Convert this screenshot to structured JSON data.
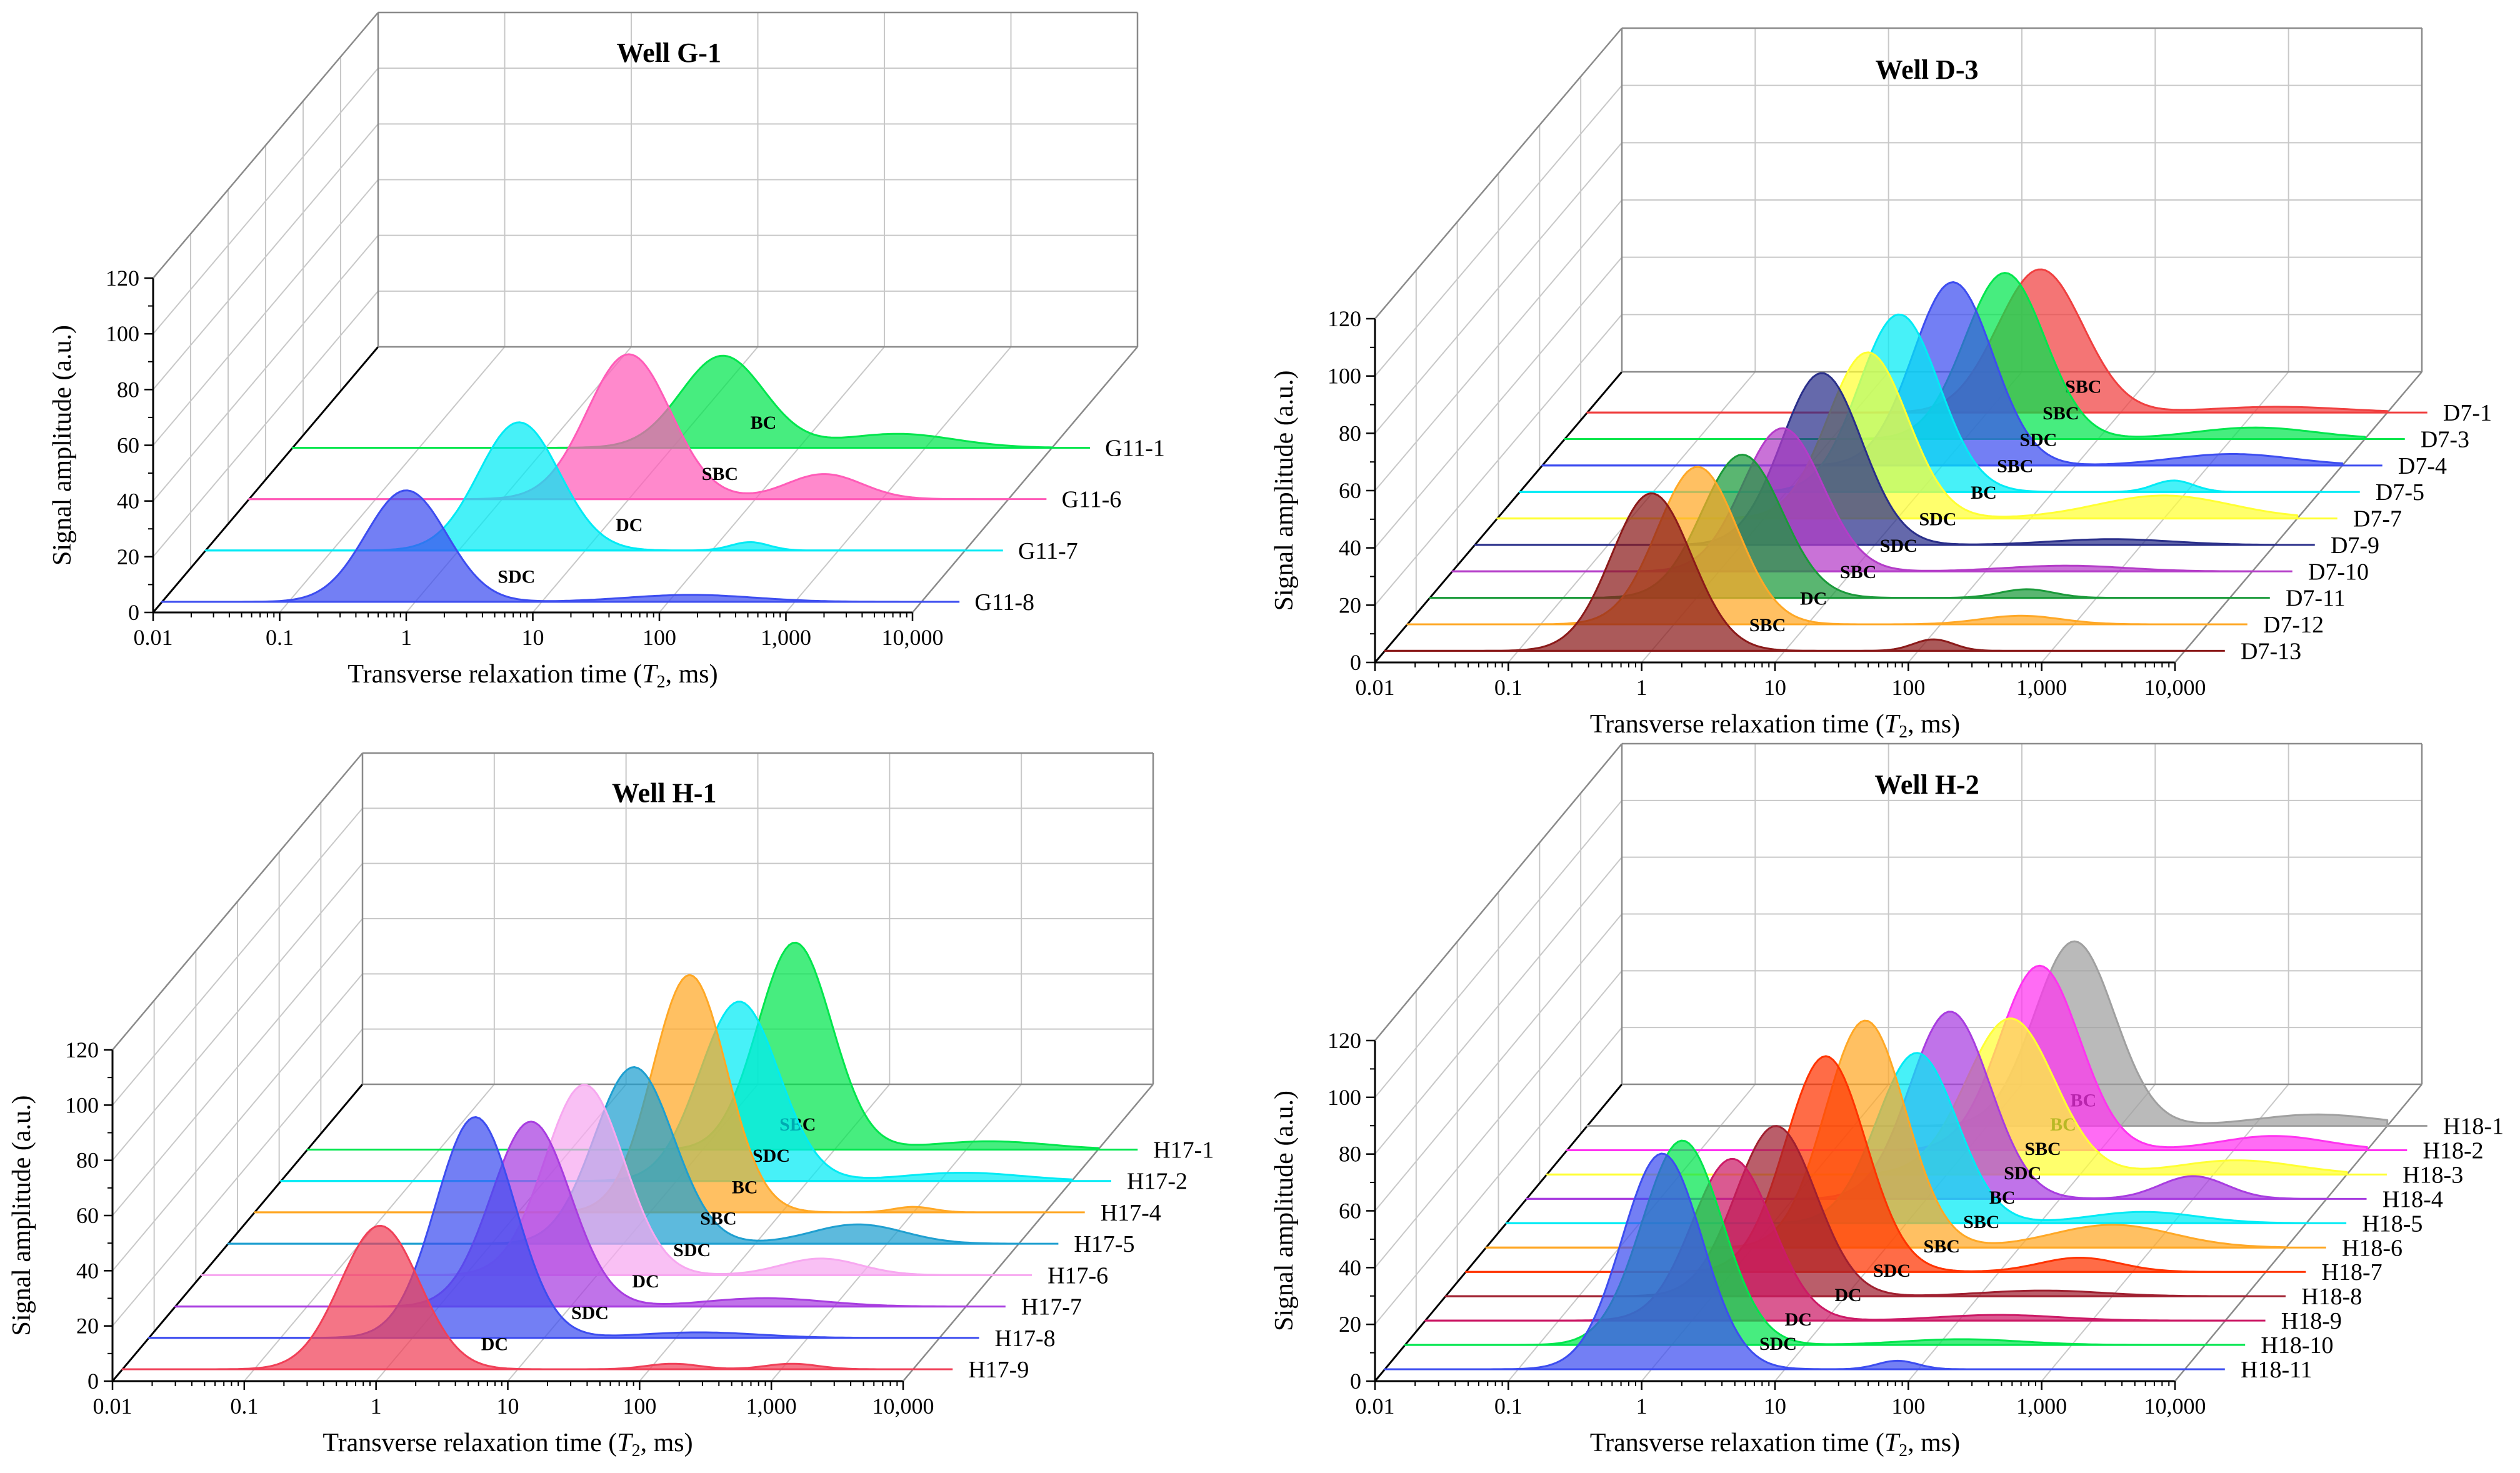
{
  "chart_data": [
    {
      "type": "area",
      "title": "Well G-1",
      "xlabel": "Transverse relaxation time (T2, ms)",
      "xlabel_parts": [
        "Transverse relaxation time (",
        "T",
        "2",
        ", ms)"
      ],
      "ylabel": "Signal amplitude (a.u.)",
      "x_scale": "log",
      "xlim": [
        0.01,
        10000
      ],
      "ylim": [
        0,
        120
      ],
      "x_ticks": [
        "0.01",
        "0.1",
        "1",
        "10",
        "100",
        "1,000",
        "10,000"
      ],
      "y_ticks": [
        "0",
        "20",
        "40",
        "60",
        "80",
        "100",
        "120"
      ],
      "series": [
        {
          "name": "G11-1",
          "type_label": "BC",
          "color": "#00e64d",
          "peaks": [
            {
              "t2": 25,
              "amp": 33,
              "w": 0.33
            },
            {
              "t2": 600,
              "amp": 5,
              "w": 0.45
            }
          ]
        },
        {
          "name": "G11-6",
          "type_label": "SBC",
          "color": "#ff5cb8",
          "peaks": [
            {
              "t2": 10,
              "amp": 52,
              "w": 0.33
            },
            {
              "t2": 350,
              "amp": 9,
              "w": 0.3
            }
          ]
        },
        {
          "name": "G11-7",
          "type_label": "DC",
          "color": "#00ebf5",
          "peaks": [
            {
              "t2": 3,
              "amp": 46,
              "w": 0.32
            },
            {
              "t2": 200,
              "amp": 3,
              "w": 0.15
            }
          ]
        },
        {
          "name": "G11-8",
          "type_label": "SDC",
          "color": "#3d4df0",
          "peaks": [
            {
              "t2": 0.85,
              "amp": 40,
              "w": 0.32
            },
            {
              "t2": 150,
              "amp": 2.5,
              "w": 0.5
            }
          ]
        }
      ]
    },
    {
      "type": "area",
      "title": "Well D-3",
      "xlabel": "Transverse relaxation time (T2, ms)",
      "xlabel_parts": [
        "Transverse relaxation time (",
        "T",
        "2",
        ", ms)"
      ],
      "ylabel": "Signal amplitude (a.u.)",
      "x_scale": "log",
      "xlim": [
        0.01,
        10000
      ],
      "ylim": [
        0,
        120
      ],
      "x_ticks": [
        "0.01",
        "0.1",
        "1",
        "10",
        "100",
        "1,000",
        "10,000"
      ],
      "y_ticks": [
        "0",
        "20",
        "40",
        "60",
        "80",
        "100",
        "120"
      ],
      "series": [
        {
          "name": "D7-1",
          "type_label": "SBC",
          "color": "#f04040",
          "peaks": [
            {
              "t2": 25,
              "amp": 50,
              "w": 0.32
            },
            {
              "t2": 1500,
              "amp": 2,
              "w": 0.5
            }
          ]
        },
        {
          "name": "D7-3",
          "type_label": "SBC",
          "color": "#00e64d",
          "peaks": [
            {
              "t2": 20,
              "amp": 58,
              "w": 0.3
            },
            {
              "t2": 1500,
              "amp": 4,
              "w": 0.45
            }
          ]
        },
        {
          "name": "D7-4",
          "type_label": "SDC",
          "color": "#3d4df0",
          "peaks": [
            {
              "t2": 12,
              "amp": 64,
              "w": 0.3
            },
            {
              "t2": 1500,
              "amp": 4,
              "w": 0.45
            }
          ]
        },
        {
          "name": "D7-5",
          "type_label": "SBC",
          "color": "#00ebf5",
          "peaks": [
            {
              "t2": 7,
              "amp": 62,
              "w": 0.3
            },
            {
              "t2": 800,
              "amp": 4,
              "w": 0.15
            }
          ]
        },
        {
          "name": "D7-7",
          "type_label": "BC",
          "color": "#ffff33",
          "peaks": [
            {
              "t2": 6,
              "amp": 58,
              "w": 0.3
            },
            {
              "t2": 1000,
              "amp": 8,
              "w": 0.5
            }
          ]
        },
        {
          "name": "D7-9",
          "type_label": "SDC",
          "color": "#2a2f8a",
          "peaks": [
            {
              "t2": 4,
              "amp": 60,
              "w": 0.3
            },
            {
              "t2": 600,
              "amp": 2,
              "w": 0.45
            }
          ]
        },
        {
          "name": "D7-10",
          "type_label": "SDC",
          "color": "#b43cc8",
          "peaks": [
            {
              "t2": 3,
              "amp": 50,
              "w": 0.3
            },
            {
              "t2": 400,
              "amp": 2,
              "w": 0.45
            }
          ]
        },
        {
          "name": "D7-11",
          "type_label": "SBC",
          "color": "#1a9a3a",
          "peaks": [
            {
              "t2": 2.2,
              "amp": 50,
              "w": 0.3
            },
            {
              "t2": 300,
              "amp": 3,
              "w": 0.2
            }
          ]
        },
        {
          "name": "D7-12",
          "type_label": "DC",
          "color": "#ffa826",
          "peaks": [
            {
              "t2": 1.5,
              "amp": 55,
              "w": 0.3
            },
            {
              "t2": 400,
              "amp": 3,
              "w": 0.3
            }
          ]
        },
        {
          "name": "D7-13",
          "type_label": "SBC",
          "color": "#8b1a1a",
          "peaks": [
            {
              "t2": 1,
              "amp": 55,
              "w": 0.3
            },
            {
              "t2": 130,
              "amp": 4,
              "w": 0.15
            }
          ]
        }
      ]
    },
    {
      "type": "area",
      "title": "Well H-1",
      "xlabel": "Transverse relaxation time (T2, ms)",
      "xlabel_parts": [
        "Transverse relaxation time (",
        "T",
        "2",
        ", ms)"
      ],
      "ylabel": "Signal amplitude (a.u.)",
      "x_scale": "log",
      "xlim": [
        0.01,
        10000
      ],
      "ylim": [
        0,
        120
      ],
      "x_ticks": [
        "0.01",
        "0.1",
        "1",
        "10",
        "100",
        "1,000",
        "10,000"
      ],
      "y_ticks": [
        "0",
        "20",
        "40",
        "60",
        "80",
        "100",
        "120"
      ],
      "series": [
        {
          "name": "H17-1",
          "type_label": "SBC",
          "color": "#00e64d",
          "peaks": [
            {
              "t2": 50,
              "amp": 75,
              "w": 0.28
            },
            {
              "t2": 1500,
              "amp": 3,
              "w": 0.45
            }
          ]
        },
        {
          "name": "H17-2",
          "type_label": "SDC",
          "color": "#00ebf5",
          "peaks": [
            {
              "t2": 30,
              "amp": 65,
              "w": 0.3
            },
            {
              "t2": 1500,
              "amp": 3,
              "w": 0.45
            }
          ]
        },
        {
          "name": "H17-4",
          "type_label": "BC",
          "color": "#ffa826",
          "peaks": [
            {
              "t2": 20,
              "amp": 86,
              "w": 0.28
            },
            {
              "t2": 1000,
              "amp": 2,
              "w": 0.15
            }
          ]
        },
        {
          "name": "H17-5",
          "type_label": "SBC",
          "color": "#1f9fd0",
          "peaks": [
            {
              "t2": 12,
              "amp": 64,
              "w": 0.3
            },
            {
              "t2": 600,
              "amp": 7,
              "w": 0.35
            }
          ]
        },
        {
          "name": "H17-6",
          "type_label": "SDC",
          "color": "#f7a8f0",
          "peaks": [
            {
              "t2": 8,
              "amp": 69,
              "w": 0.3
            },
            {
              "t2": 500,
              "amp": 6,
              "w": 0.3
            }
          ]
        },
        {
          "name": "H17-7",
          "type_label": "DC",
          "color": "#a83de0",
          "peaks": [
            {
              "t2": 5,
              "amp": 67,
              "w": 0.3
            },
            {
              "t2": 300,
              "amp": 3,
              "w": 0.45
            }
          ]
        },
        {
          "name": "H17-8",
          "type_label": "SDC",
          "color": "#3d4df0",
          "peaks": [
            {
              "t2": 3,
              "amp": 80,
              "w": 0.3
            },
            {
              "t2": 150,
              "amp": 2,
              "w": 0.45
            }
          ]
        },
        {
          "name": "H17-9",
          "type_label": "DC",
          "color": "#f04058",
          "peaks": [
            {
              "t2": 0.9,
              "amp": 52,
              "w": 0.3
            },
            {
              "t2": 150,
              "amp": 2,
              "w": 0.2
            },
            {
              "t2": 1200,
              "amp": 2,
              "w": 0.2
            }
          ]
        }
      ]
    },
    {
      "type": "area",
      "title": "Well H-2",
      "xlabel": "Transverse relaxation time (T2, ms)",
      "xlabel_parts": [
        "Transverse relaxation time (",
        "T",
        "2",
        ", ms)"
      ],
      "ylabel": "Signal amplitude (a.u.)",
      "x_scale": "log",
      "xlim": [
        0.01,
        10000
      ],
      "ylim": [
        0,
        120
      ],
      "x_ticks": [
        "0.01",
        "0.1",
        "1",
        "10",
        "100",
        "1,000",
        "10,000"
      ],
      "y_ticks": [
        "0",
        "20",
        "40",
        "60",
        "80",
        "100",
        "120"
      ],
      "series": [
        {
          "name": "H18-1",
          "type_label": "BC",
          "color": "#a0a0a0",
          "peaks": [
            {
              "t2": 45,
              "amp": 65,
              "w": 0.3
            },
            {
              "t2": 3000,
              "amp": 4,
              "w": 0.45
            }
          ]
        },
        {
          "name": "H18-2",
          "type_label": "BC",
          "color": "#ff33f0",
          "peaks": [
            {
              "t2": 35,
              "amp": 65,
              "w": 0.3
            },
            {
              "t2": 2000,
              "amp": 5,
              "w": 0.4
            }
          ]
        },
        {
          "name": "H18-3",
          "type_label": "SBC",
          "color": "#ffff33",
          "peaks": [
            {
              "t2": 30,
              "amp": 55,
              "w": 0.33
            },
            {
              "t2": 1500,
              "amp": 5,
              "w": 0.45
            }
          ]
        },
        {
          "name": "H18-4",
          "type_label": "SDC",
          "color": "#a83de0",
          "peaks": [
            {
              "t2": 15,
              "amp": 66,
              "w": 0.3
            },
            {
              "t2": 1000,
              "amp": 8,
              "w": 0.25
            }
          ]
        },
        {
          "name": "H18-5",
          "type_label": "BC",
          "color": "#00ebf5",
          "peaks": [
            {
              "t2": 12,
              "amp": 60,
              "w": 0.3
            },
            {
              "t2": 600,
              "amp": 4,
              "w": 0.4
            }
          ]
        },
        {
          "name": "H18-6",
          "type_label": "SBC",
          "color": "#ffa826",
          "peaks": [
            {
              "t2": 7,
              "amp": 80,
              "w": 0.3
            },
            {
              "t2": 500,
              "amp": 8,
              "w": 0.45
            }
          ]
        },
        {
          "name": "H18-7",
          "type_label": "SBC",
          "color": "#ff3300",
          "peaks": [
            {
              "t2": 5,
              "amp": 76,
              "w": 0.3
            },
            {
              "t2": 400,
              "amp": 5,
              "w": 0.3
            }
          ]
        },
        {
          "name": "H18-8",
          "type_label": "SDC",
          "color": "#a02030",
          "peaks": [
            {
              "t2": 3,
              "amp": 60,
              "w": 0.3
            },
            {
              "t2": 300,
              "amp": 2,
              "w": 0.45
            }
          ]
        },
        {
          "name": "H18-9",
          "type_label": "DC",
          "color": "#cc1a66",
          "peaks": [
            {
              "t2": 2,
              "amp": 57,
              "w": 0.3
            },
            {
              "t2": 200,
              "amp": 2,
              "w": 0.45
            }
          ]
        },
        {
          "name": "H18-10",
          "type_label": "DC",
          "color": "#00e64d",
          "peaks": [
            {
              "t2": 1.2,
              "amp": 72,
              "w": 0.3
            },
            {
              "t2": 150,
              "amp": 2,
              "w": 0.45
            }
          ]
        },
        {
          "name": "H18-11",
          "type_label": "SDC",
          "color": "#3d4df0",
          "peaks": [
            {
              "t2": 1.2,
              "amp": 76,
              "w": 0.3
            },
            {
              "t2": 70,
              "amp": 3,
              "w": 0.15
            }
          ]
        }
      ]
    }
  ]
}
